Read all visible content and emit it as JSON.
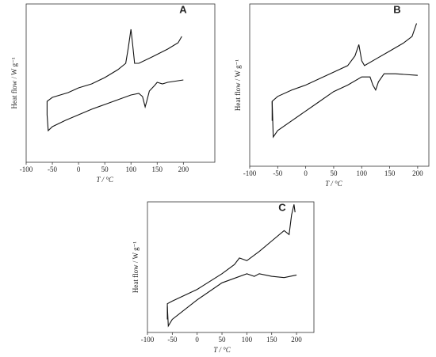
{
  "chart_data": [
    {
      "type": "line",
      "label": "A",
      "xlabel": "T / °C",
      "ylabel": "Heat flow / W g⁻¹",
      "xlim": [
        -100,
        260
      ],
      "xticks": [
        -100,
        -50,
        0,
        50,
        100,
        150,
        200
      ],
      "ylim": [
        0,
        100
      ],
      "series": [
        {
          "color": "#111",
          "x": [
            -60,
            -60,
            -60,
            -50,
            -20,
            0,
            25,
            50,
            75,
            90,
            95,
            100,
            103,
            107,
            115,
            140,
            170,
            190,
            197
          ],
          "values": [
            30,
            37.5,
            38.5,
            41,
            44,
            47,
            49.5,
            53.5,
            58.5,
            62.5,
            72.5,
            84,
            75,
            62.5,
            62.5,
            66.5,
            71.5,
            75.5,
            79.5
          ]
        },
        {
          "color": "#111",
          "x": [
            -60,
            -58,
            -50,
            -25,
            0,
            25,
            50,
            75,
            100,
            115,
            122,
            127,
            130,
            135,
            145,
            150,
            160,
            170,
            200
          ],
          "values": [
            30,
            20,
            22.5,
            26.5,
            30,
            33.5,
            36.5,
            39.5,
            42.5,
            43.5,
            41.5,
            35,
            38.5,
            45,
            48.5,
            50.5,
            49.5,
            50.5,
            52
          ]
        }
      ]
    },
    {
      "type": "line",
      "label": "B",
      "xlabel": "T / °C",
      "ylabel": "Heat flow / W g⁻¹",
      "xlim": [
        -100,
        220
      ],
      "xticks": [
        -100,
        -50,
        0,
        50,
        100,
        150,
        200
      ],
      "ylim": [
        0,
        100
      ],
      "series": [
        {
          "color": "#111",
          "x": [
            -60,
            -60,
            -50,
            -25,
            0,
            25,
            50,
            75,
            88,
            95,
            100,
            105,
            125,
            150,
            175,
            190,
            198
          ],
          "values": [
            28,
            40,
            43,
            47,
            50,
            54,
            58,
            62,
            68,
            75,
            65,
            62,
            66,
            71,
            76,
            80,
            88
          ]
        },
        {
          "color": "#111",
          "x": [
            -60,
            -58,
            -50,
            -25,
            0,
            25,
            50,
            75,
            100,
            115,
            120,
            125,
            130,
            140,
            160,
            200
          ],
          "values": [
            40,
            18,
            22,
            28,
            34,
            40,
            46,
            50,
            55,
            55,
            50,
            47,
            52,
            57,
            57,
            56
          ]
        }
      ]
    },
    {
      "type": "line",
      "label": "C",
      "xlabel": "T / °C",
      "ylabel": "Heat flow / W g⁻¹",
      "xlim": [
        -100,
        235
      ],
      "xticks": [
        -100,
        -50,
        0,
        50,
        100,
        150,
        200
      ],
      "ylim": [
        0,
        100
      ],
      "series": [
        {
          "color": "#111",
          "x": [
            -60,
            -60,
            -50,
            0,
            50,
            75,
            85,
            100,
            125,
            150,
            175,
            185,
            190,
            195,
            197
          ],
          "values": [
            10,
            22,
            24,
            33,
            45,
            52,
            57,
            55,
            62,
            70,
            78,
            75,
            90,
            98,
            92
          ]
        },
        {
          "color": "#111",
          "x": [
            -60,
            -58,
            -50,
            0,
            50,
            100,
            115,
            125,
            150,
            175,
            200
          ],
          "values": [
            20,
            5,
            10,
            25,
            38,
            45,
            43,
            45,
            43,
            42,
            44
          ]
        }
      ]
    }
  ]
}
